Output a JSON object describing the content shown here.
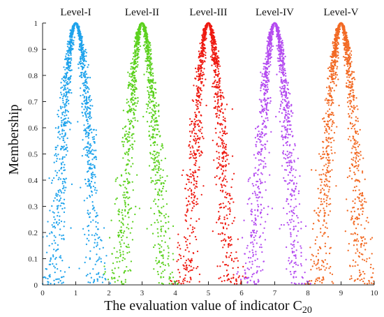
{
  "chart_data": {
    "type": "scatter",
    "title": "",
    "xlabel": "The evaluation value of indicator C",
    "xlabel_subscript": "20",
    "ylabel": "Membership",
    "xlim": [
      0,
      10
    ],
    "ylim": [
      0,
      1
    ],
    "xticks": [
      "0",
      "1",
      "2",
      "3",
      "4",
      "5",
      "6",
      "7",
      "8",
      "9",
      "10"
    ],
    "yticks": [
      "0",
      "0.1",
      "0.2",
      "0.3",
      "0.4",
      "0.5",
      "0.6",
      "0.7",
      "0.8",
      "0.9",
      "1"
    ],
    "grid": false,
    "point_distribution": "Gaussian membership curves with random scatter; peak membership 1 at x = Ex, approaching 0 near x = Ex ± 1.1",
    "series": [
      {
        "name": "Level-I",
        "color": "#1fa3ec",
        "Ex": 1,
        "En": 0.36,
        "He": 0.03,
        "x_range": [
          0,
          2.1
        ]
      },
      {
        "name": "Level-II",
        "color": "#5cd11f",
        "Ex": 3,
        "En": 0.36,
        "He": 0.03,
        "x_range": [
          1.8,
          4.2
        ]
      },
      {
        "name": "Level-III",
        "color": "#ee1b12",
        "Ex": 5,
        "En": 0.36,
        "He": 0.03,
        "x_range": [
          3.8,
          6.2
        ]
      },
      {
        "name": "Level-IV",
        "color": "#b44cf0",
        "Ex": 7,
        "En": 0.36,
        "He": 0.03,
        "x_range": [
          5.8,
          8.2
        ]
      },
      {
        "name": "Level-V",
        "color": "#f26a24",
        "Ex": 9,
        "En": 0.36,
        "He": 0.03,
        "x_range": [
          7.9,
          10
        ]
      }
    ]
  }
}
